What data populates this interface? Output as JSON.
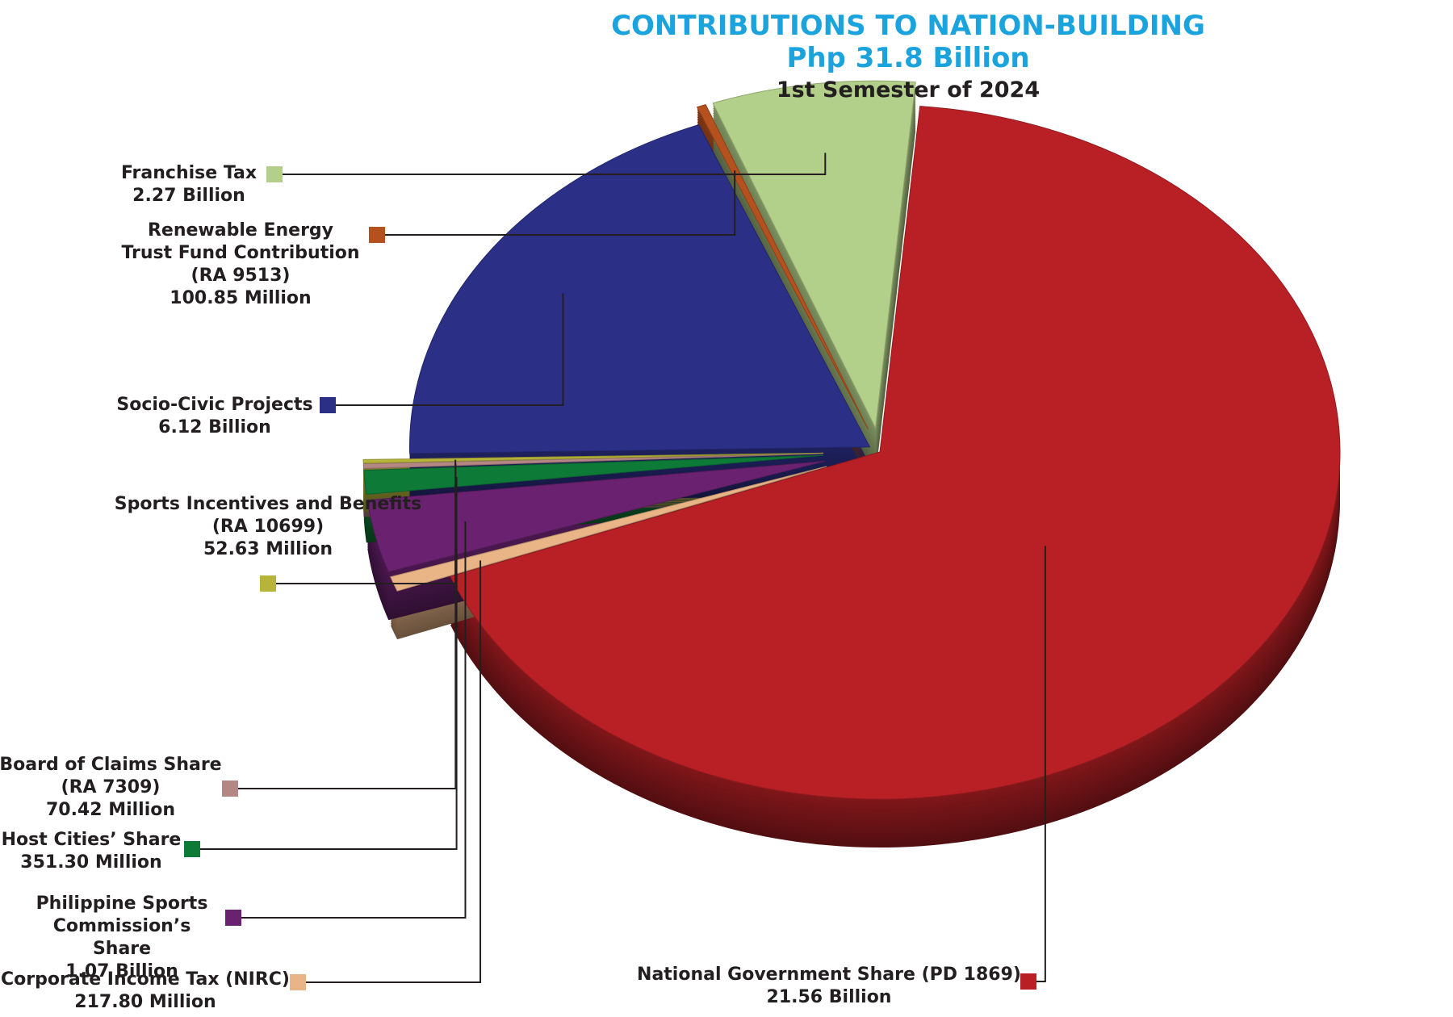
{
  "chart_data": {
    "type": "pie",
    "title": "CONTRIBUTIONS TO NATION-BUILDING",
    "subtitle": "Php 31.8 Billion",
    "period": "1st Semester of 2024",
    "categories": [
      "National Government Share (PD 1869)",
      "Corporate Income Tax (NIRC)",
      "Philippine Sports Commission’s Share",
      "Host Cities’ Share",
      "Board of Claims Share (RA 7309)",
      "Sports Incentives and Benefits (RA 10699)",
      "Socio-Civic Projects",
      "Renewable Energy Trust Fund Contribution (RA 9513)",
      "Franchise Tax"
    ],
    "values": [
      21560,
      217.8,
      1070,
      351.3,
      70.42,
      52.63,
      6120,
      100.85,
      2270
    ],
    "value_labels": [
      "21.56 Billion",
      "217.80 Million",
      "1.07 Billion",
      "351.30 Million",
      "70.42 Million",
      "52.63 Million",
      "6.12 Billion",
      "100.85 Million",
      "2.27 Billion"
    ],
    "colors": [
      "#b82025",
      "#e9b486",
      "#6a2270",
      "#0e7a38",
      "#b48784",
      "#b7b43a",
      "#2b2f86",
      "#b5501f",
      "#b3d08a"
    ]
  }
}
